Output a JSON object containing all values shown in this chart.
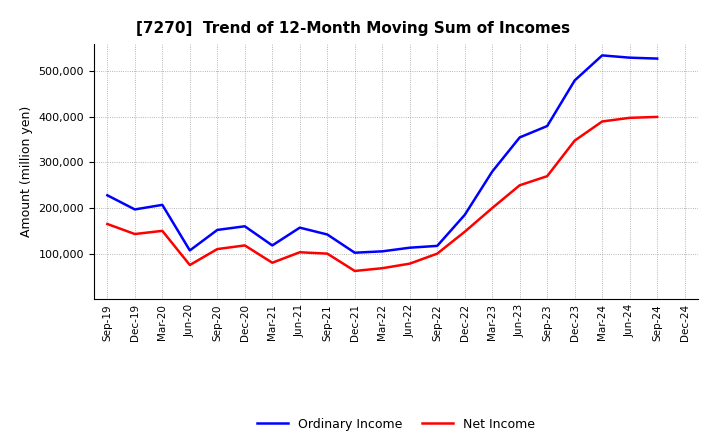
{
  "title": "[7270]  Trend of 12-Month Moving Sum of Incomes",
  "ylabel": "Amount (million yen)",
  "x_labels": [
    "Sep-19",
    "Dec-19",
    "Mar-20",
    "Jun-20",
    "Sep-20",
    "Dec-20",
    "Mar-21",
    "Jun-21",
    "Sep-21",
    "Dec-21",
    "Mar-22",
    "Jun-22",
    "Sep-22",
    "Dec-22",
    "Mar-23",
    "Jun-23",
    "Sep-23",
    "Dec-23",
    "Mar-24",
    "Jun-24",
    "Sep-24",
    "Dec-24"
  ],
  "ordinary_income": [
    228000,
    197000,
    207000,
    107000,
    152000,
    160000,
    118000,
    157000,
    142000,
    102000,
    105000,
    113000,
    117000,
    185000,
    280000,
    355000,
    380000,
    480000,
    535000,
    530000,
    528000,
    null
  ],
  "net_income": [
    165000,
    143000,
    150000,
    75000,
    110000,
    118000,
    80000,
    103000,
    100000,
    62000,
    68000,
    78000,
    100000,
    148000,
    200000,
    250000,
    270000,
    348000,
    390000,
    398000,
    400000,
    null
  ],
  "ordinary_color": "#0000FF",
  "net_color": "#FF0000",
  "ylim": [
    0,
    560000
  ],
  "yticks": [
    100000,
    200000,
    300000,
    400000,
    500000
  ],
  "background_color": "#ffffff",
  "grid_color": "#aaaaaa",
  "legend_labels": [
    "Ordinary Income",
    "Net Income"
  ]
}
